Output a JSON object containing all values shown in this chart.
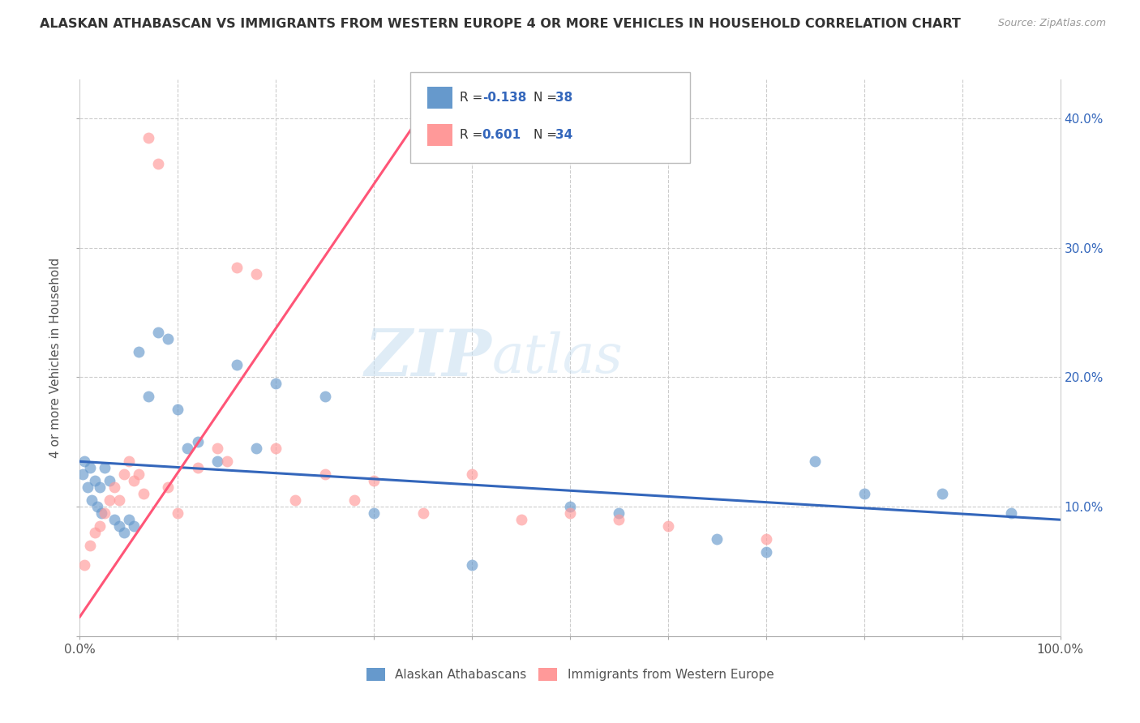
{
  "title": "ALASKAN ATHABASCAN VS IMMIGRANTS FROM WESTERN EUROPE 4 OR MORE VEHICLES IN HOUSEHOLD CORRELATION CHART",
  "source": "Source: ZipAtlas.com",
  "ylabel": "4 or more Vehicles in Household",
  "y_ticks": [
    0,
    10,
    20,
    30,
    40
  ],
  "x_range": [
    0,
    100
  ],
  "y_range": [
    0,
    43
  ],
  "legend_label1": "Alaskan Athabascans",
  "legend_label2": "Immigrants from Western Europe",
  "R1": "-0.138",
  "N1": "38",
  "R2": "0.601",
  "N2": "34",
  "color1": "#6699CC",
  "color2": "#FF9999",
  "line_color1": "#3366BB",
  "line_color2": "#FF5577",
  "watermark_zip": "ZIP",
  "watermark_atlas": "atlas",
  "blue_scatter_x": [
    0.3,
    0.5,
    0.8,
    1.0,
    1.2,
    1.5,
    1.8,
    2.0,
    2.2,
    2.5,
    3.0,
    3.5,
    4.0,
    4.5,
    5.0,
    5.5,
    6.0,
    7.0,
    8.0,
    9.0,
    10.0,
    11.0,
    12.0,
    14.0,
    16.0,
    18.0,
    20.0,
    25.0,
    30.0,
    40.0,
    50.0,
    55.0,
    65.0,
    70.0,
    75.0,
    80.0,
    88.0,
    95.0
  ],
  "blue_scatter_y": [
    12.5,
    13.5,
    11.5,
    13.0,
    10.5,
    12.0,
    10.0,
    11.5,
    9.5,
    13.0,
    12.0,
    9.0,
    8.5,
    8.0,
    9.0,
    8.5,
    22.0,
    18.5,
    23.5,
    23.0,
    17.5,
    14.5,
    15.0,
    13.5,
    21.0,
    14.5,
    19.5,
    18.5,
    9.5,
    5.5,
    10.0,
    9.5,
    7.5,
    6.5,
    13.5,
    11.0,
    11.0,
    9.5
  ],
  "pink_scatter_x": [
    0.5,
    1.0,
    1.5,
    2.0,
    2.5,
    3.0,
    3.5,
    4.0,
    4.5,
    5.0,
    5.5,
    6.0,
    6.5,
    7.0,
    8.0,
    9.0,
    10.0,
    12.0,
    14.0,
    15.0,
    16.0,
    18.0,
    20.0,
    22.0,
    25.0,
    28.0,
    30.0,
    35.0,
    40.0,
    45.0,
    50.0,
    55.0,
    60.0,
    70.0
  ],
  "pink_scatter_y": [
    5.5,
    7.0,
    8.0,
    8.5,
    9.5,
    10.5,
    11.5,
    10.5,
    12.5,
    13.5,
    12.0,
    12.5,
    11.0,
    38.5,
    36.5,
    11.5,
    9.5,
    13.0,
    14.5,
    13.5,
    28.5,
    28.0,
    14.5,
    10.5,
    12.5,
    10.5,
    12.0,
    9.5,
    12.5,
    9.0,
    9.5,
    9.0,
    8.5,
    7.5
  ],
  "blue_line_x": [
    0,
    100
  ],
  "blue_line_y": [
    13.5,
    9.0
  ],
  "pink_line_x": [
    0,
    35
  ],
  "pink_line_y": [
    1.5,
    40.5
  ]
}
